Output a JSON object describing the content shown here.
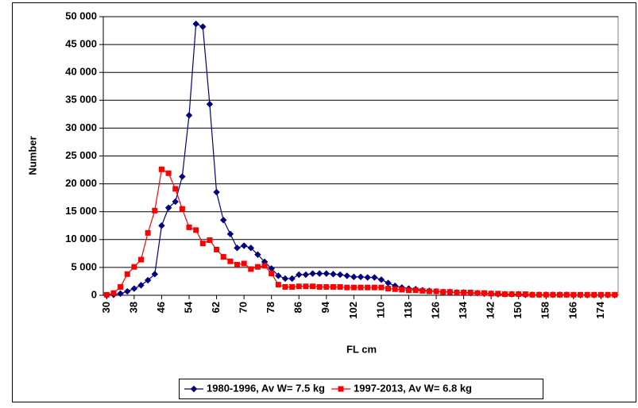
{
  "chart_data": {
    "type": "line",
    "xlabel": "FL cm",
    "ylabel": "Number",
    "x": [
      30,
      32,
      34,
      36,
      38,
      40,
      42,
      44,
      46,
      48,
      50,
      52,
      54,
      56,
      58,
      60,
      62,
      64,
      66,
      68,
      70,
      72,
      74,
      76,
      78,
      80,
      82,
      84,
      86,
      88,
      90,
      92,
      94,
      96,
      98,
      100,
      102,
      104,
      106,
      108,
      110,
      112,
      114,
      116,
      118,
      120,
      122,
      124,
      126,
      128,
      130,
      132,
      134,
      136,
      138,
      140,
      142,
      144,
      146,
      148,
      150,
      152,
      154,
      156,
      158,
      160,
      162,
      164,
      166,
      168,
      170,
      172,
      174,
      176,
      178
    ],
    "xlim": [
      29,
      179
    ],
    "xticks": [
      30,
      38,
      46,
      54,
      62,
      70,
      78,
      86,
      94,
      102,
      110,
      118,
      126,
      134,
      142,
      150,
      158,
      166,
      174
    ],
    "ylim": [
      0,
      50000
    ],
    "yticks": [
      {
        "value": 0,
        "label": "0"
      },
      {
        "value": 5000,
        "label": "5 000"
      },
      {
        "value": 10000,
        "label": "10 000"
      },
      {
        "value": 15000,
        "label": "15 000"
      },
      {
        "value": 20000,
        "label": "20 000"
      },
      {
        "value": 25000,
        "label": "25 000"
      },
      {
        "value": 30000,
        "label": "30 000"
      },
      {
        "value": 35000,
        "label": "35 000"
      },
      {
        "value": 40000,
        "label": "40 000"
      },
      {
        "value": 45000,
        "label": "45 000"
      },
      {
        "value": 50000,
        "label": "50 000"
      }
    ],
    "grid": true,
    "legend": "bottom",
    "series": [
      {
        "name": "1980-1996, Av W= 7.5 kg",
        "color": "#000080",
        "marker": "diamond",
        "values": [
          0,
          100,
          300,
          700,
          1200,
          1800,
          2700,
          3800,
          12500,
          15700,
          16800,
          21300,
          32300,
          48700,
          48200,
          34300,
          18500,
          13500,
          11000,
          8500,
          8900,
          8500,
          7300,
          6000,
          4800,
          3500,
          3000,
          3000,
          3700,
          3700,
          3900,
          3900,
          3900,
          3800,
          3700,
          3500,
          3300,
          3300,
          3200,
          3200,
          2800,
          2200,
          1700,
          1400,
          1200,
          1100,
          900,
          800,
          700,
          600,
          600,
          500,
          500,
          400,
          400,
          300,
          300,
          200,
          200,
          200,
          200,
          100,
          100,
          100,
          100,
          100,
          100,
          100,
          50,
          50,
          50,
          50,
          50,
          50,
          50
        ]
      },
      {
        "name": "1997-2013, Av W= 6.8 kg",
        "color": "#ff0000",
        "marker": "square",
        "values": [
          100,
          400,
          1500,
          3800,
          5100,
          6400,
          11200,
          15200,
          22600,
          21900,
          19100,
          15500,
          12200,
          11700,
          9300,
          9900,
          8200,
          6900,
          6100,
          5500,
          5700,
          4700,
          5100,
          5300,
          3900,
          1900,
          1500,
          1500,
          1600,
          1600,
          1600,
          1500,
          1500,
          1500,
          1500,
          1400,
          1400,
          1400,
          1400,
          1400,
          1400,
          1200,
          1100,
          1000,
          900,
          900,
          800,
          700,
          700,
          600,
          600,
          500,
          500,
          500,
          400,
          400,
          300,
          300,
          200,
          200,
          200,
          200,
          100,
          100,
          100,
          100,
          100,
          100,
          100,
          100,
          100,
          100,
          100,
          100,
          100
        ]
      }
    ]
  }
}
